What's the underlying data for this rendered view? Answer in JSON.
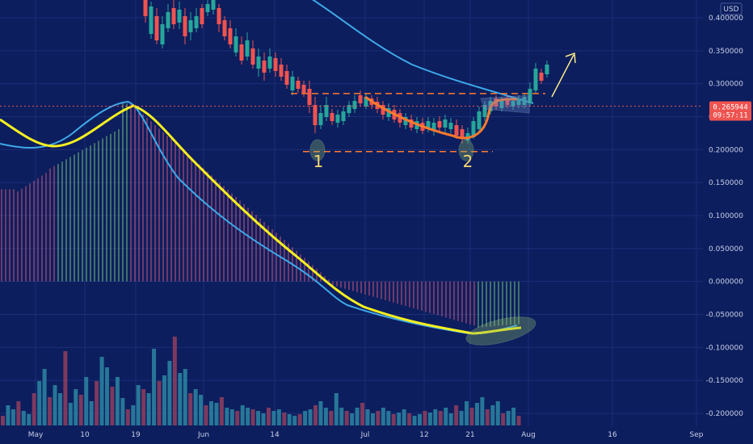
{
  "chart_data": {
    "type": "candlestick",
    "currency_label": "USD",
    "price_axis": {
      "min": -0.2,
      "max": 0.4,
      "ticks": [
        "0.400000",
        "0.350000",
        "0.300000",
        "0.250000",
        "0.200000",
        "0.150000",
        "0.100000",
        "0.050000",
        "0.000000",
        "-0.050000",
        "-0.100000",
        "-0.150000",
        "-0.200000"
      ]
    },
    "time_axis": {
      "ticks": [
        "May",
        "10",
        "19",
        "Jun",
        "14",
        "Jul",
        "12",
        "21",
        "Aug",
        "16",
        "Sep"
      ]
    },
    "last_price": {
      "value": "0.265944",
      "countdown": "09:57:11"
    },
    "annotations": [
      {
        "id": "bottom-1",
        "text": "1"
      },
      {
        "id": "bottom-2",
        "text": "2"
      }
    ],
    "resistance_level": 0.285,
    "support_level": 0.197,
    "candles_visible": "price candles Jun–Aug, rally toward 0.33",
    "indicator": {
      "type": "histogram-with-signal",
      "zero_level": 0.0,
      "fast_line_color": "#3fa9e8",
      "slow_line_color": "#f7f01e"
    },
    "colors": {
      "background": "#0c1e5e",
      "up": "#26a69a",
      "down": "#ef5350",
      "price_tag": "#ef5350",
      "ma_line": "#3fa9e8",
      "signal_line": "#f7f01e",
      "curve_orange": "#ff7a2e",
      "arrow": "#f7e98a",
      "hist_up": "#7fd67a",
      "hist_down": "#e35d7b"
    }
  }
}
